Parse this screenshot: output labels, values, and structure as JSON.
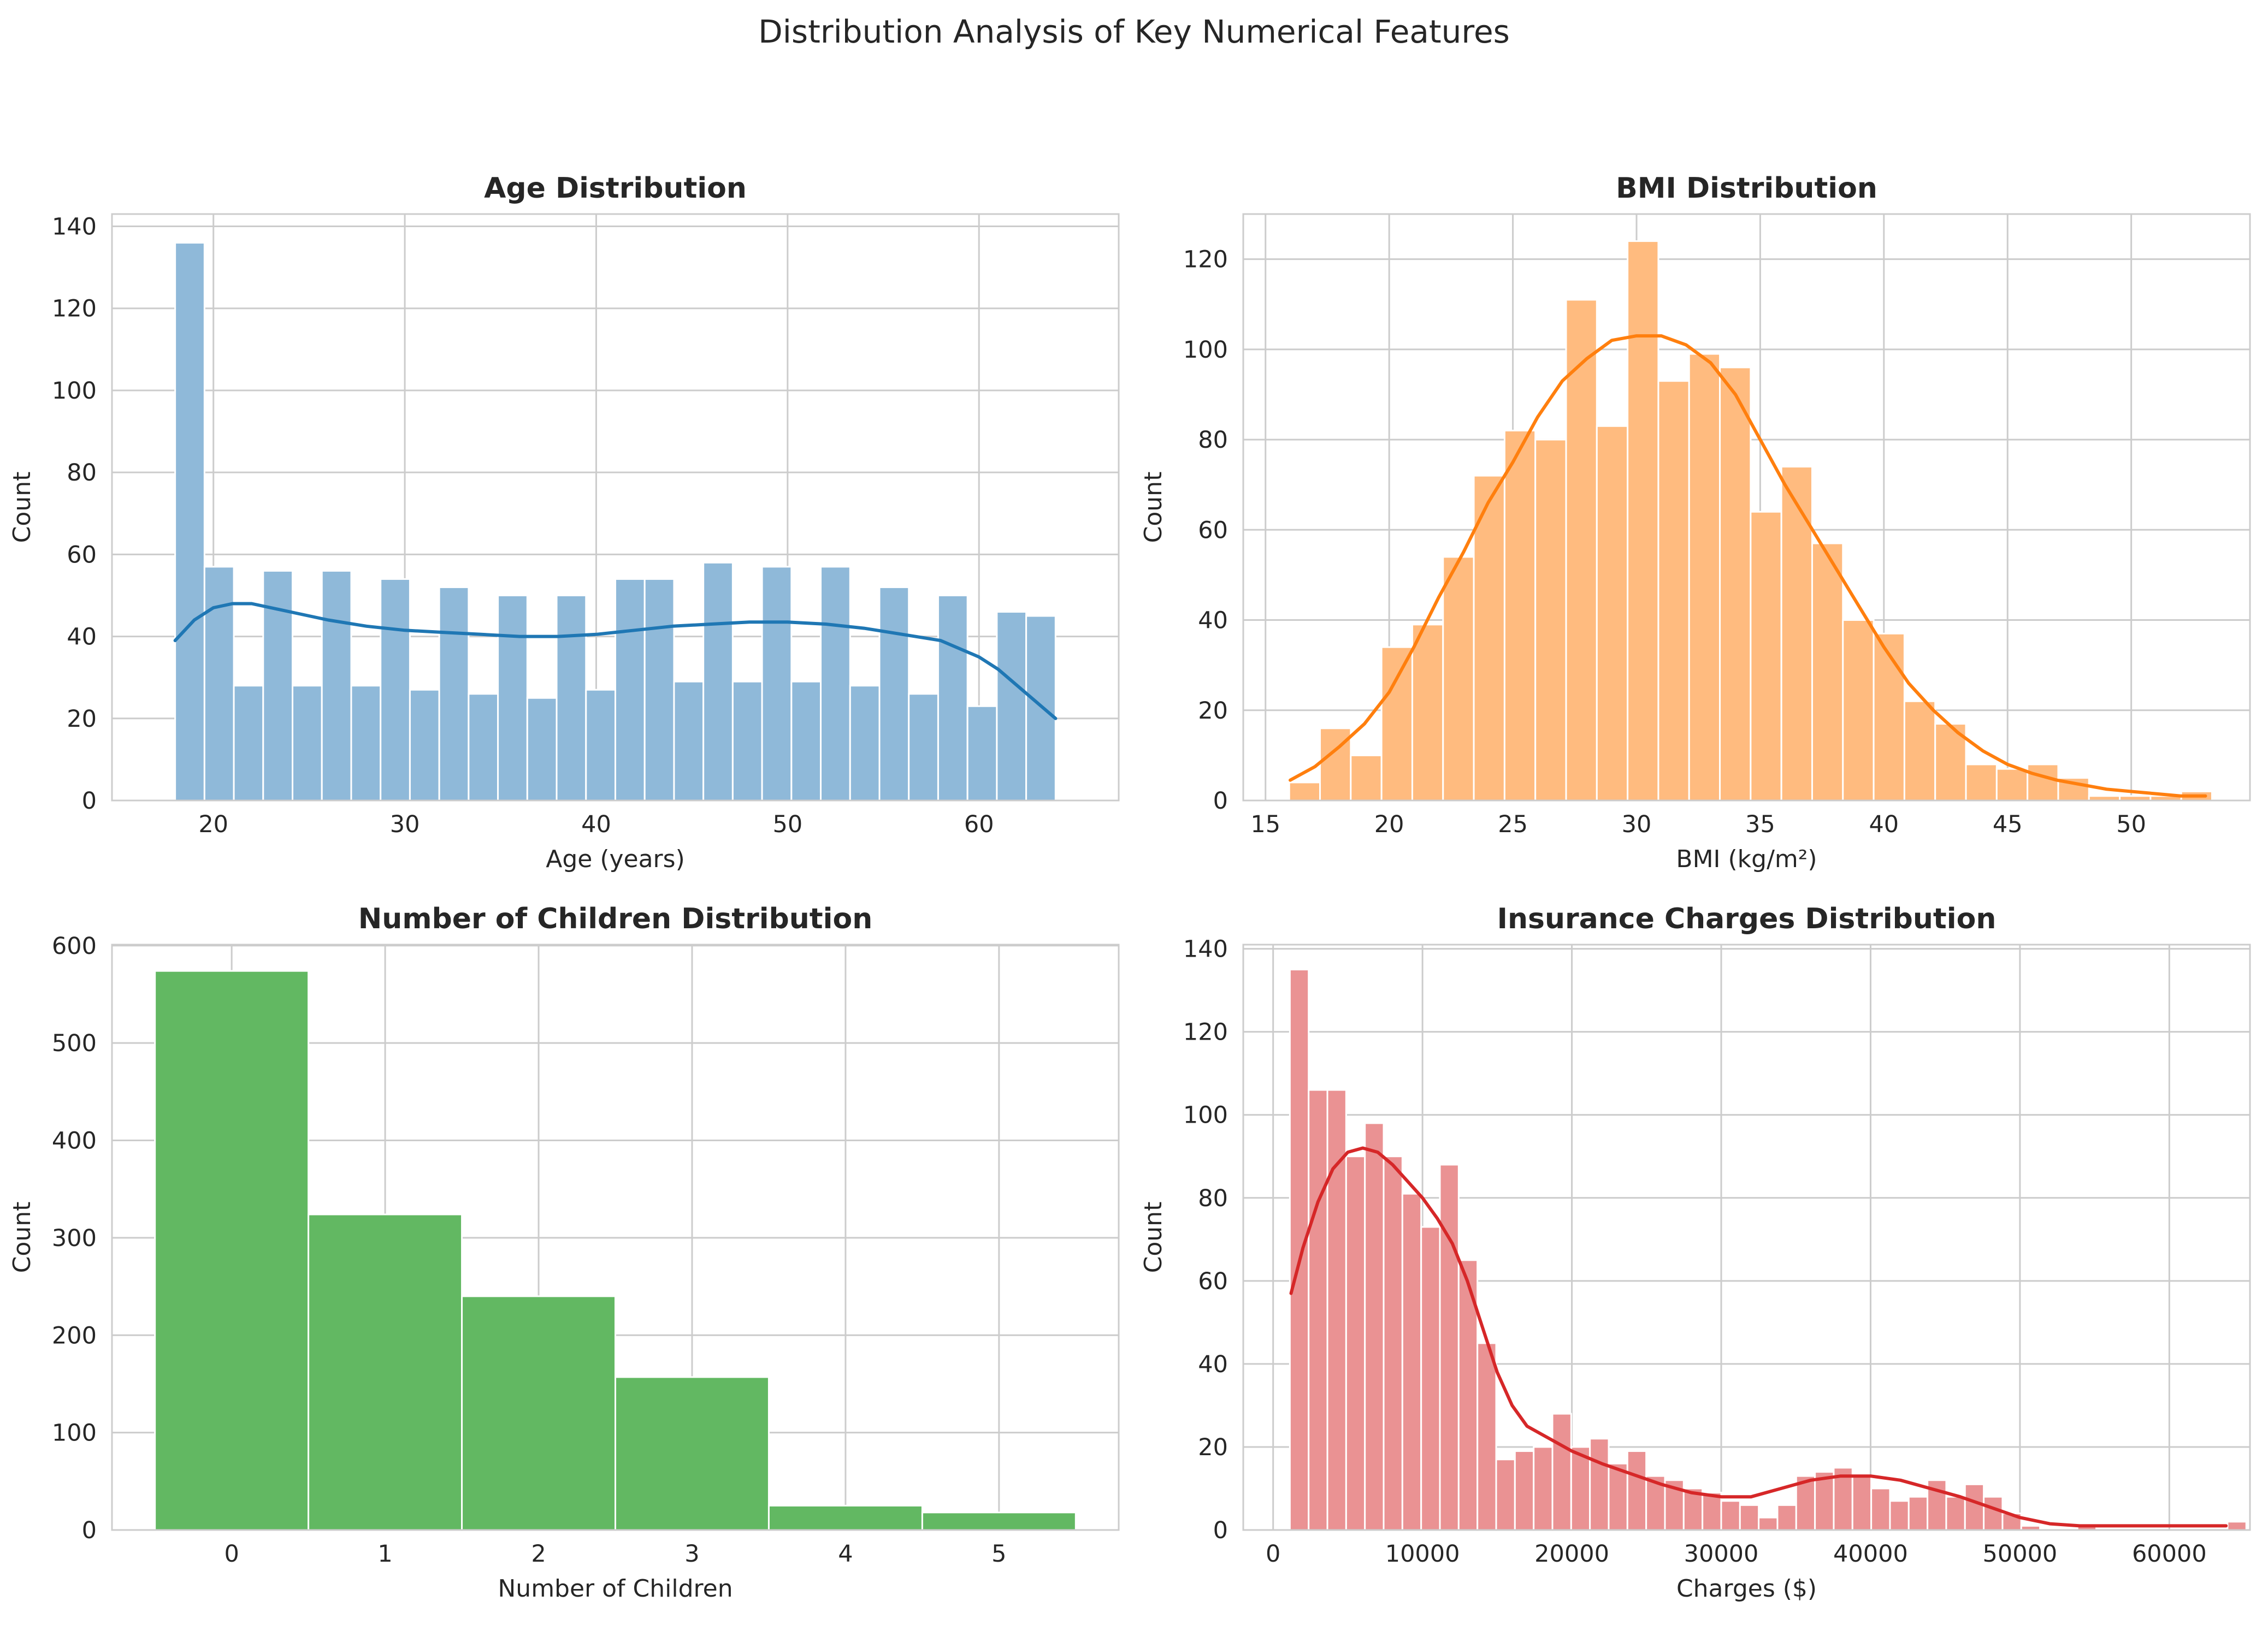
{
  "figure": {
    "suptitle": "Distribution Analysis of Key Numerical Features"
  },
  "chart_data": [
    {
      "id": "age",
      "type": "bar",
      "title": "Age Distribution",
      "xlabel": "Age (years)",
      "ylabel": "Count",
      "xlim": [
        14.7,
        67.3
      ],
      "ylim": [
        0,
        143
      ],
      "xticks": [
        20,
        30,
        40,
        50,
        60
      ],
      "yticks": [
        0,
        20,
        40,
        60,
        80,
        100,
        120,
        140
      ],
      "grid": true,
      "legend": "none",
      "color": "#1f77b4",
      "bar_color": "#8fb9d9",
      "bins": {
        "start": 18,
        "width": 1.5333,
        "counts": [
          136,
          57,
          28,
          56,
          28,
          56,
          28,
          54,
          27,
          52,
          26,
          50,
          25,
          50,
          27,
          54,
          54,
          29,
          58,
          29,
          57,
          29,
          57,
          28,
          52,
          26,
          50,
          23,
          46,
          45
        ]
      },
      "kde": {
        "x": [
          18,
          19,
          20,
          21,
          22,
          24,
          26,
          28,
          30,
          32,
          34,
          36,
          38,
          40,
          42,
          44,
          46,
          48,
          50,
          52,
          54,
          56,
          58,
          60,
          61,
          62,
          63,
          64
        ],
        "y": [
          39,
          44,
          47,
          48,
          48,
          46,
          44,
          42.5,
          41.5,
          41,
          40.5,
          40,
          40,
          40.5,
          41.5,
          42.5,
          43,
          43.5,
          43.5,
          43,
          42,
          40.5,
          39,
          35,
          32,
          28,
          24,
          20
        ]
      }
    },
    {
      "id": "bmi",
      "type": "bar",
      "title": "BMI Distribution",
      "xlabel": "BMI (kg/m²)",
      "ylabel": "Count",
      "xlim": [
        14.1,
        54.8
      ],
      "ylim": [
        0,
        130
      ],
      "xticks": [
        15,
        20,
        25,
        30,
        35,
        40,
        45,
        50
      ],
      "yticks": [
        0,
        20,
        40,
        60,
        80,
        100,
        120
      ],
      "grid": true,
      "legend": "none",
      "color": "#ff7f0e",
      "bar_color": "#ffbb7f",
      "bins": {
        "start": 15.96,
        "width": 1.2435,
        "counts": [
          4,
          16,
          10,
          34,
          39,
          54,
          72,
          82,
          80,
          111,
          83,
          124,
          93,
          99,
          96,
          64,
          74,
          57,
          40,
          37,
          22,
          17,
          8,
          7,
          8,
          5,
          1,
          1,
          1,
          2
        ]
      },
      "kde": {
        "x": [
          16,
          17,
          18,
          19,
          20,
          21,
          22,
          23,
          24,
          25,
          26,
          27,
          28,
          29,
          30,
          31,
          32,
          33,
          34,
          35,
          36,
          37,
          38,
          39,
          40,
          41,
          42,
          43,
          44,
          45,
          46,
          47,
          48,
          49,
          50,
          51,
          52,
          53
        ],
        "y": [
          4.5,
          7.5,
          12,
          17,
          24,
          34,
          45,
          55,
          66,
          75,
          85,
          93,
          98,
          102,
          103,
          103,
          101,
          97,
          90,
          80,
          70,
          61,
          52,
          43,
          34,
          26,
          20,
          15,
          11,
          8,
          6,
          4.5,
          3.5,
          2.5,
          2,
          1.5,
          1,
          1
        ]
      }
    },
    {
      "id": "children",
      "type": "bar",
      "title": "Number of Children Distribution",
      "xlabel": "Number of Children",
      "ylabel": "Count",
      "xlim": [
        -0.78,
        5.78
      ],
      "ylim": [
        0,
        601
      ],
      "xticks": [
        0,
        1,
        2,
        3,
        4,
        5
      ],
      "yticks": [
        0,
        100,
        200,
        300,
        400,
        500,
        600
      ],
      "grid": true,
      "legend": "none",
      "color": "#2ca02c",
      "bar_color": "#62b862",
      "bins": {
        "start": -0.5,
        "width": 1,
        "counts": [
          574,
          324,
          240,
          157,
          25,
          18
        ]
      }
    },
    {
      "id": "charges",
      "type": "bar",
      "title": "Insurance Charges Distribution",
      "xlabel": "Charges ($)",
      "ylabel": "Count",
      "xlim": [
        -2000,
        65400
      ],
      "ylim": [
        0,
        141
      ],
      "xticks": [
        0,
        10000,
        20000,
        30000,
        40000,
        50000,
        60000
      ],
      "yticks": [
        0,
        20,
        40,
        60,
        80,
        100,
        120,
        140
      ],
      "grid": true,
      "legend": "none",
      "color": "#d62728",
      "bar_color": "#ea9293",
      "bins": {
        "start": 1122,
        "width": 1255.5,
        "counts": [
          135,
          106,
          106,
          90,
          98,
          90,
          81,
          73,
          88,
          65,
          45,
          17,
          19,
          20,
          28,
          20,
          22,
          16,
          19,
          13,
          12,
          10,
          9,
          7,
          6,
          3,
          6,
          13,
          14,
          15,
          13,
          10,
          7,
          8,
          12,
          8,
          11,
          8,
          4,
          1,
          0,
          0,
          1,
          0,
          0,
          0,
          0,
          0,
          0,
          0,
          2
        ]
      },
      "kde": {
        "x": [
          1200,
          2000,
          3000,
          4000,
          5000,
          6000,
          7000,
          8000,
          9000,
          10000,
          11000,
          12000,
          13000,
          14000,
          15000,
          16000,
          17000,
          18000,
          19000,
          20000,
          22000,
          24000,
          26000,
          28000,
          30000,
          32000,
          34000,
          36000,
          38000,
          40000,
          42000,
          44000,
          46000,
          48000,
          50000,
          52000,
          54000,
          56000,
          58000,
          60000,
          62000,
          63800
        ],
        "y": [
          57,
          68,
          79,
          87,
          91,
          92,
          91,
          88,
          84,
          80,
          75,
          69,
          60,
          49,
          38,
          30,
          25,
          23,
          21,
          19,
          16,
          13.5,
          11,
          9,
          8,
          8,
          10,
          12,
          13,
          13,
          12,
          10,
          8,
          5.5,
          3,
          1.5,
          1,
          1,
          1,
          1,
          1,
          1
        ]
      }
    }
  ]
}
